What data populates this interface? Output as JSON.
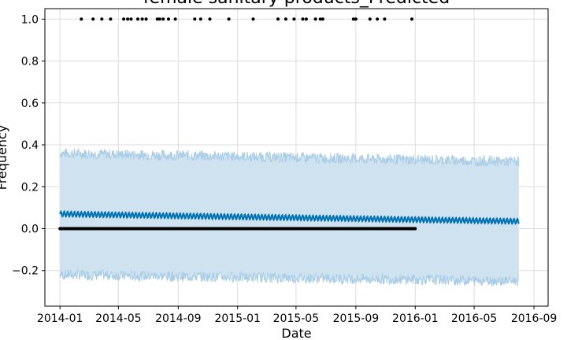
{
  "chart_data": {
    "type": "line",
    "title": "female sanitary products_Predicted",
    "xlabel": "Date",
    "ylabel": "Frequency",
    "x_range": [
      "2013-12-01",
      "2016-09-30"
    ],
    "x_ticks": [
      "2014-01",
      "2014-05",
      "2014-09",
      "2015-01",
      "2015-05",
      "2015-09",
      "2016-01",
      "2016-05",
      "2016-09"
    ],
    "ylim": [
      -0.37,
      1.05
    ],
    "y_ticks": [
      -0.2,
      0.0,
      0.2,
      0.4,
      0.6,
      0.8,
      1.0
    ],
    "y_tick_labels": [
      "−0.2",
      "0.0",
      "0.2",
      "0.4",
      "0.6",
      "0.8",
      "1.0"
    ],
    "grid": true,
    "colors": {
      "forecast": "#0072b2",
      "interval_fill": "#cfe2ef",
      "interval_edge": "#a9cde6",
      "observed": "#000000",
      "grid": "#dddddd"
    },
    "series": [
      {
        "role": "forecast_trend",
        "start": "2014-01-01",
        "end": "2016-08-01",
        "y_start": 0.07,
        "y_end": 0.035,
        "weekly_amplitude": 0.012
      },
      {
        "role": "forecast_interval",
        "upper": [
          0.36,
          0.32
        ],
        "lower": [
          -0.22,
          -0.25
        ]
      },
      {
        "role": "observed",
        "zeros_start": "2014-01-01",
        "zeros_end": "2016-01-01",
        "ones": [
          "2014-02-14",
          "2014-03-10",
          "2014-03-28",
          "2014-04-15",
          "2014-05-12",
          "2014-05-20",
          "2014-05-27",
          "2014-06-10",
          "2014-06-19",
          "2014-06-27",
          "2014-07-20",
          "2014-07-25",
          "2014-08-01",
          "2014-08-12",
          "2014-08-26",
          "2014-10-05",
          "2014-10-17",
          "2014-11-05",
          "2014-12-14",
          "2015-02-02",
          "2015-03-25",
          "2015-04-10",
          "2015-04-27",
          "2015-05-15",
          "2015-05-22",
          "2015-06-10",
          "2015-06-20",
          "2015-06-25",
          "2015-08-27",
          "2015-09-01",
          "2015-09-30",
          "2015-10-15",
          "2015-10-30",
          "2015-12-25"
        ]
      }
    ]
  }
}
